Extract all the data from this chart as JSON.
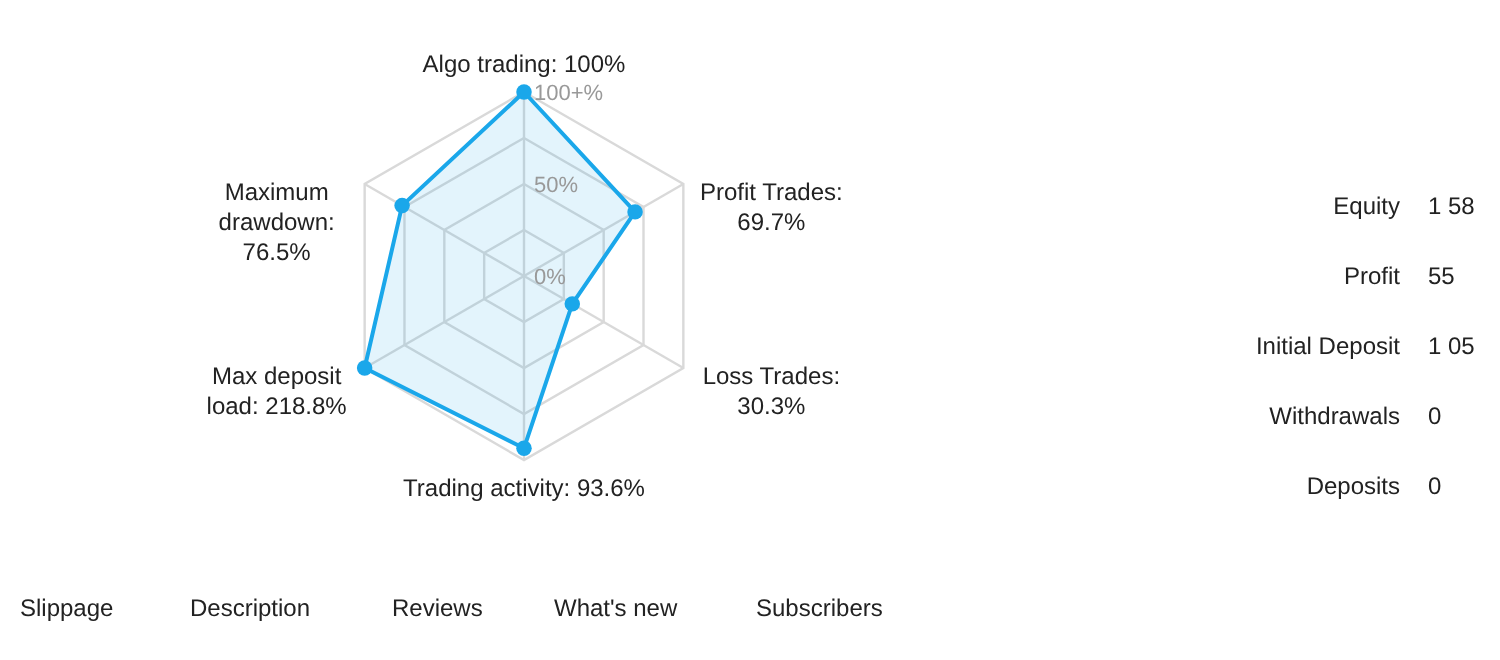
{
  "chart_data": {
    "type": "radar",
    "categories": [
      "Algo trading: 100%",
      "Profit Trades: 69.7%",
      "Loss Trades: 30.3%",
      "Trading activity: 93.6%",
      "Max deposit load: 218.8%",
      "Maximum drawdown: 76.5%"
    ],
    "series": [
      {
        "color": "#1aa7ea",
        "values": [
          100,
          69.7,
          30.3,
          93.6,
          100,
          76.5
        ]
      }
    ],
    "ylim": [
      0,
      100
    ],
    "yticks": [
      {
        "value": 0,
        "label": "0%"
      },
      {
        "value": 50,
        "label": "50%"
      },
      {
        "value": 100,
        "label": "100+%"
      }
    ],
    "grid": true,
    "marker": "circle",
    "annotations": [
      "Equity",
      "1 58",
      "Profit",
      "55",
      "Initial Deposit",
      "1 05",
      "Withdrawals",
      "0",
      "Deposits",
      "0",
      "Slippage",
      "Description",
      "Reviews",
      "What's new",
      "Subscribers"
    ]
  }
}
